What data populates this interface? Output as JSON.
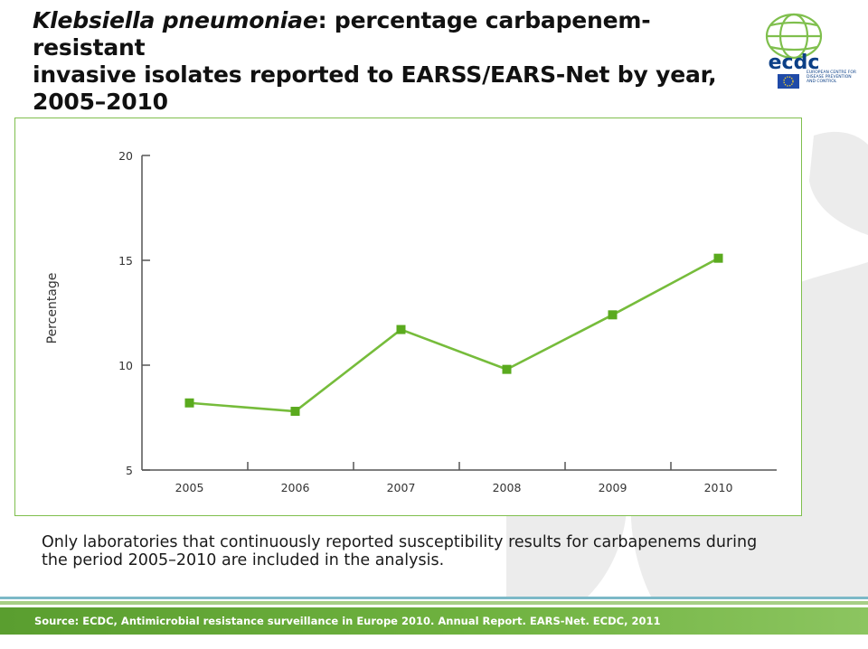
{
  "title": {
    "species": "Klebsiella pneumoniae",
    "rest_line1": ": percentage carbapenem-resistant",
    "line2": "invasive isolates reported to EARSS/EARS-Net by year,",
    "line3": "2005–2010"
  },
  "logo": {
    "wordmark": "ecdc",
    "subtitle": "European Centre for Disease Prevention and Control"
  },
  "chart_data": {
    "type": "line",
    "x": [
      "2005",
      "2006",
      "2007",
      "2008",
      "2009",
      "2010"
    ],
    "series": [
      {
        "values": [
          8.2,
          7.8,
          11.7,
          9.8,
          12.4,
          15.1
        ]
      }
    ],
    "ylabel": "Percentage",
    "xlabel": "",
    "ylim": [
      5,
      20
    ],
    "yticks": [
      "20",
      "15",
      "10",
      "5"
    ],
    "grid": false,
    "line_color": "#76bc3b",
    "marker_color": "#5aaa1e"
  },
  "note": "Only laboratories that continuously reported susceptibility results for carbapenems during the period 2005–2010 are included in the analysis.",
  "source": "Source: ECDC, Antimicrobial resistance surveillance in Europe 2010. Annual Report. EARS-Net. ECDC, 2011"
}
